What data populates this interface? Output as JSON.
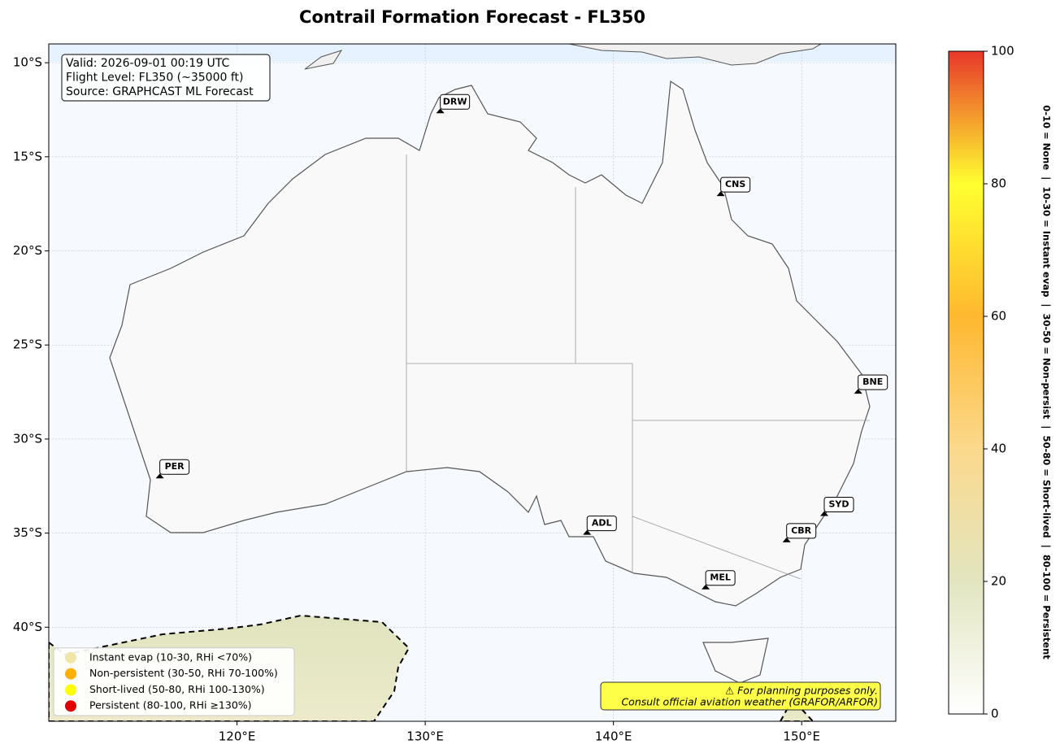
{
  "chart_data": {
    "type": "map",
    "title": "Contrail Formation Forecast - FL350",
    "xlim": [
      110,
      155
    ],
    "ylim": [
      -45,
      -9
    ],
    "xticks": [
      {
        "value": 120,
        "label": "120°E"
      },
      {
        "value": 130,
        "label": "130°E"
      },
      {
        "value": 140,
        "label": "140°E"
      },
      {
        "value": 150,
        "label": "150°E"
      }
    ],
    "yticks": [
      {
        "value": -10,
        "label": "10°S"
      },
      {
        "value": -15,
        "label": "15°S"
      },
      {
        "value": -20,
        "label": "20°S"
      },
      {
        "value": -25,
        "label": "25°S"
      },
      {
        "value": -30,
        "label": "30°S"
      },
      {
        "value": -35,
        "label": "35°S"
      },
      {
        "value": -40,
        "label": "40°S"
      }
    ],
    "grid": true,
    "info": [
      "Valid: 2026-09-01 00:19 UTC",
      "Flight Level: FL350 (~35000 ft)",
      "Source: GRAPHCAST ML Forecast"
    ],
    "airports": [
      {
        "name": "DRW",
        "lon": 130.8,
        "lat": -12.6
      },
      {
        "name": "CNS",
        "lon": 145.7,
        "lat": -17.0
      },
      {
        "name": "BNE",
        "lon": 153.0,
        "lat": -27.5
      },
      {
        "name": "PER",
        "lon": 115.9,
        "lat": -32.0
      },
      {
        "name": "ADL",
        "lon": 138.6,
        "lat": -35.0
      },
      {
        "name": "SYD",
        "lon": 151.2,
        "lat": -34.0
      },
      {
        "name": "CBR",
        "lon": 149.2,
        "lat": -35.4
      },
      {
        "name": "MEL",
        "lon": 144.9,
        "lat": -37.9
      }
    ],
    "legend": {
      "loc": "lower left",
      "entries": [
        {
          "label": "Instant evap (10-30, RHi <70%)",
          "color": "#f0e6a8"
        },
        {
          "label": "Non-persistent (30-50, RHi 70-100%)",
          "color": "#ffb000"
        },
        {
          "label": "Short-lived (50-80, RHi 100-130%)",
          "color": "#ffff00"
        },
        {
          "label": "Persistent (80-100, RHi ≥130%)",
          "color": "#e00000"
        }
      ]
    },
    "note": [
      "⚠ For planning purposes only.",
      "Consult official aviation weather (GRAFOR/ARFOR)"
    ],
    "colorbar": {
      "lim": [
        0,
        100
      ],
      "ticks": [
        0,
        20,
        40,
        60,
        80,
        100
      ],
      "label": "0-10 = None  |  10-30 = Instant evap  |  30-50 = Non-persist  |  50-80 = Short-lived  |  80-100 = Persistent",
      "colors": [
        "#ffffff",
        "#e2e5c0",
        "#fbd98c",
        "#ffb830",
        "#ffff30",
        "#e8382a"
      ]
    }
  }
}
